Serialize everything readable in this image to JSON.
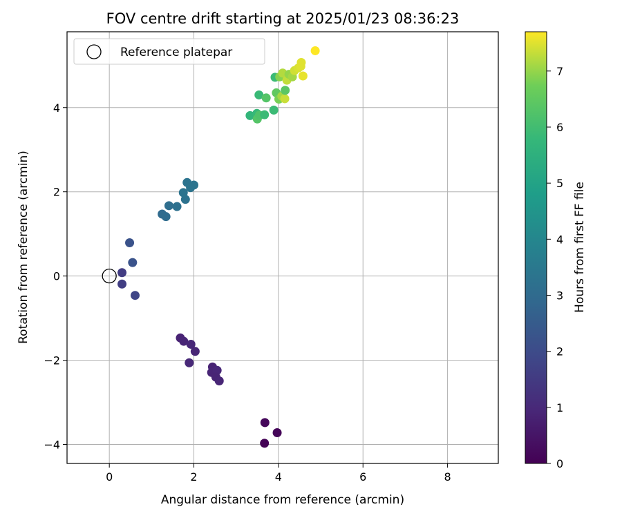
{
  "chart_data": {
    "type": "scatter",
    "title": "FOV centre drift starting at 2025/01/23 08:36:23",
    "xlabel": "Angular distance from reference (arcmin)",
    "ylabel": "Rotation from reference (arcmin)",
    "xlim": [
      -1.0,
      9.2
    ],
    "ylim": [
      -4.45,
      5.8
    ],
    "x_ticks": [
      0,
      2,
      4,
      6,
      8
    ],
    "y_ticks": [
      -4,
      -2,
      0,
      2,
      4
    ],
    "x_tick_labels": [
      "0",
      "2",
      "4",
      "6",
      "8"
    ],
    "y_tick_labels": [
      "−4",
      "−2",
      "0",
      "2",
      "4"
    ],
    "grid": true,
    "legend": {
      "position": "top-left",
      "entries": [
        "Reference platepar"
      ]
    },
    "reference_point": {
      "x": 0,
      "y": 0
    },
    "colorbar": {
      "label": "Hours from first FF file",
      "colormap": "viridis",
      "range": [
        0,
        7.7
      ],
      "ticks": [
        0,
        1,
        2,
        3,
        4,
        5,
        6,
        7
      ],
      "tick_labels": [
        "0",
        "1",
        "2",
        "3",
        "4",
        "5",
        "6",
        "7"
      ]
    },
    "points": [
      {
        "x": 3.67,
        "y": -3.97,
        "t": 0.05
      },
      {
        "x": 3.68,
        "y": -3.48,
        "t": 0.15
      },
      {
        "x": 3.97,
        "y": -3.72,
        "t": 0.1
      },
      {
        "x": 1.68,
        "y": -1.47,
        "t": 0.85
      },
      {
        "x": 1.76,
        "y": -1.55,
        "t": 0.9
      },
      {
        "x": 1.93,
        "y": -1.62,
        "t": 0.95
      },
      {
        "x": 2.03,
        "y": -1.79,
        "t": 0.92
      },
      {
        "x": 1.89,
        "y": -2.06,
        "t": 0.98
      },
      {
        "x": 2.44,
        "y": -2.16,
        "t": 0.85
      },
      {
        "x": 2.42,
        "y": -2.29,
        "t": 0.9
      },
      {
        "x": 2.55,
        "y": -2.24,
        "t": 0.95
      },
      {
        "x": 2.52,
        "y": -2.4,
        "t": 0.88
      },
      {
        "x": 2.6,
        "y": -2.49,
        "t": 0.92
      },
      {
        "x": 0.3,
        "y": 0.08,
        "t": 1.55
      },
      {
        "x": 0.3,
        "y": -0.19,
        "t": 1.6
      },
      {
        "x": 0.61,
        "y": -0.46,
        "t": 1.8
      },
      {
        "x": 0.48,
        "y": 0.79,
        "t": 2.2
      },
      {
        "x": 0.55,
        "y": 0.32,
        "t": 2.25
      },
      {
        "x": 1.25,
        "y": 1.47,
        "t": 3.0
      },
      {
        "x": 1.34,
        "y": 1.41,
        "t": 3.05
      },
      {
        "x": 1.41,
        "y": 1.67,
        "t": 3.1
      },
      {
        "x": 1.6,
        "y": 1.65,
        "t": 3.2
      },
      {
        "x": 1.8,
        "y": 1.82,
        "t": 3.25
      },
      {
        "x": 1.75,
        "y": 1.98,
        "t": 3.3
      },
      {
        "x": 1.84,
        "y": 2.22,
        "t": 3.3
      },
      {
        "x": 1.92,
        "y": 2.1,
        "t": 3.35
      },
      {
        "x": 2.0,
        "y": 2.16,
        "t": 3.35
      },
      {
        "x": 3.33,
        "y": 3.81,
        "t": 5.7
      },
      {
        "x": 3.49,
        "y": 3.86,
        "t": 5.8
      },
      {
        "x": 3.5,
        "y": 3.73,
        "t": 6.3
      },
      {
        "x": 3.55,
        "y": 3.82,
        "t": 6.2
      },
      {
        "x": 3.67,
        "y": 3.83,
        "t": 5.9
      },
      {
        "x": 3.54,
        "y": 4.3,
        "t": 5.85
      },
      {
        "x": 3.71,
        "y": 4.23,
        "t": 6.3
      },
      {
        "x": 3.89,
        "y": 3.94,
        "t": 5.9
      },
      {
        "x": 3.95,
        "y": 4.35,
        "t": 6.5
      },
      {
        "x": 3.92,
        "y": 4.72,
        "t": 5.9
      },
      {
        "x": 4.01,
        "y": 4.2,
        "t": 6.8
      },
      {
        "x": 4.08,
        "y": 4.27,
        "t": 7.1
      },
      {
        "x": 4.15,
        "y": 4.21,
        "t": 7.35
      },
      {
        "x": 4.16,
        "y": 4.41,
        "t": 6.4
      },
      {
        "x": 4.03,
        "y": 4.73,
        "t": 6.9
      },
      {
        "x": 4.1,
        "y": 4.82,
        "t": 7.2
      },
      {
        "x": 4.2,
        "y": 4.65,
        "t": 7.3
      },
      {
        "x": 4.25,
        "y": 4.79,
        "t": 7.0
      },
      {
        "x": 4.33,
        "y": 4.73,
        "t": 7.1
      },
      {
        "x": 4.38,
        "y": 4.88,
        "t": 7.4
      },
      {
        "x": 4.47,
        "y": 4.94,
        "t": 7.45
      },
      {
        "x": 4.54,
        "y": 5.07,
        "t": 7.5
      },
      {
        "x": 4.53,
        "y": 4.98,
        "t": 7.5
      },
      {
        "x": 4.58,
        "y": 4.75,
        "t": 7.55
      },
      {
        "x": 4.87,
        "y": 5.35,
        "t": 7.7
      }
    ]
  }
}
